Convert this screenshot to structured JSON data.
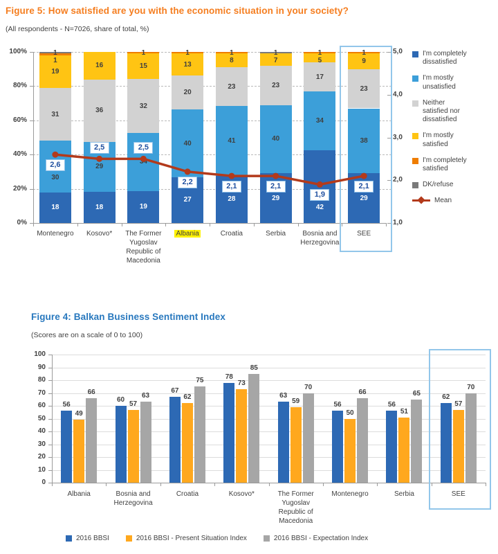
{
  "figure5": {
    "title": "Figure 5: How satisfied are you with the economic situation in your society?",
    "subtitle": "(All respondents - N=7026, share of total, %)",
    "title_color": "#f57e20"
  },
  "figure4": {
    "title": "Figure 4: Balkan Business Sentiment Index",
    "subtitle": "(Scores are on a scale of 0 to 100)",
    "title_color": "#2878be"
  },
  "colors": {
    "text": "#404040",
    "axis": "#9a9a9a",
    "see_box_border": "#92c6ea",
    "albania_highlight": "#fff200"
  },
  "chart_data": [
    {
      "id": "figure5",
      "type": "stacked-bar-with-line",
      "categories": [
        "Montenegro",
        "Kosovo*",
        "The Former Yugoslav Republic of Macedonia",
        "Albania",
        "Croatia",
        "Serbia",
        "Bosnia and Herzegovina",
        "SEE"
      ],
      "highlight_category": "Albania",
      "boxed_category": "SEE",
      "left_axis": {
        "ticks": [
          "0%",
          "20%",
          "40%",
          "60%",
          "80%",
          "100%"
        ],
        "values": [
          0,
          20,
          40,
          60,
          80,
          100
        ]
      },
      "right_axis": {
        "ticks": [
          "1,0",
          "2,0",
          "3,0",
          "4,0",
          "5,0"
        ],
        "values": [
          1,
          2,
          3,
          4,
          5
        ]
      },
      "series": [
        {
          "name": "I'm completely dissatisfied",
          "color": "#2d69b4",
          "label_color": "#ffffff",
          "values": [
            18,
            18,
            19,
            27,
            28,
            29,
            42,
            29
          ]
        },
        {
          "name": "I'm mostly unsatisfied",
          "color": "#3c9fd9",
          "label_color": "#3f3f3f",
          "values": [
            30,
            29,
            34,
            40,
            41,
            40,
            34,
            38
          ]
        },
        {
          "name": "Neither satisfied nor dissatisfied",
          "color": "#d2d2d2",
          "label_color": "#3f3f3f",
          "values": [
            31,
            36,
            32,
            20,
            23,
            23,
            17,
            23
          ]
        },
        {
          "name": "I'm mostly satisfied",
          "color": "#ffc413",
          "label_color": "#3f3f3f",
          "values": [
            19,
            16,
            15,
            13,
            8,
            7,
            5,
            9
          ]
        },
        {
          "name": "I'm completely satisfied",
          "color": "#ef7d00",
          "label_color": "#3f3f3f",
          "values": [
            1,
            null,
            1,
            1,
            1,
            null,
            1,
            1
          ]
        },
        {
          "name": "DK/refuse",
          "color": "#7a7a7a",
          "label_color": "#3f3f3f",
          "values": [
            1,
            null,
            null,
            null,
            null,
            1,
            null,
            null
          ]
        }
      ],
      "mean": {
        "name": "Mean",
        "color": "#b33a1b",
        "values": [
          2.6,
          2.5,
          2.5,
          2.2,
          2.1,
          2.1,
          1.9,
          2.1
        ],
        "labels": [
          "2,6",
          "2,5",
          "2,5",
          "2,2",
          "2,1",
          "2,1",
          "1,9",
          "2,1"
        ],
        "label_position": [
          "below",
          "above",
          "above",
          "below",
          "below",
          "below",
          "below",
          "below"
        ]
      }
    },
    {
      "id": "figure4",
      "type": "bar",
      "categories": [
        "Albania",
        "Bosnia and Herzegovina",
        "Croatia",
        "Kosovo*",
        "The Former Yugoslav Republic of Macedonia",
        "Montenegro",
        "Serbia",
        "SEE"
      ],
      "boxed_category": "SEE",
      "ylim": [
        0,
        100
      ],
      "yticks": [
        "0",
        "10",
        "20",
        "30",
        "40",
        "50",
        "60",
        "70",
        "80",
        "90",
        "100"
      ],
      "series": [
        {
          "name": "2016 BBSI",
          "color": "#2d69b4",
          "values": [
            56,
            60,
            67,
            78,
            63,
            56,
            56,
            62
          ]
        },
        {
          "name": "2016 BBSI - Present Situation Index",
          "color": "#ffa81e",
          "values": [
            49,
            57,
            62,
            73,
            59,
            50,
            51,
            57
          ]
        },
        {
          "name": "2016 BBSI - Expectation Index",
          "color": "#a6a6a6",
          "values": [
            66,
            63,
            75,
            85,
            70,
            66,
            65,
            70
          ]
        }
      ]
    }
  ]
}
